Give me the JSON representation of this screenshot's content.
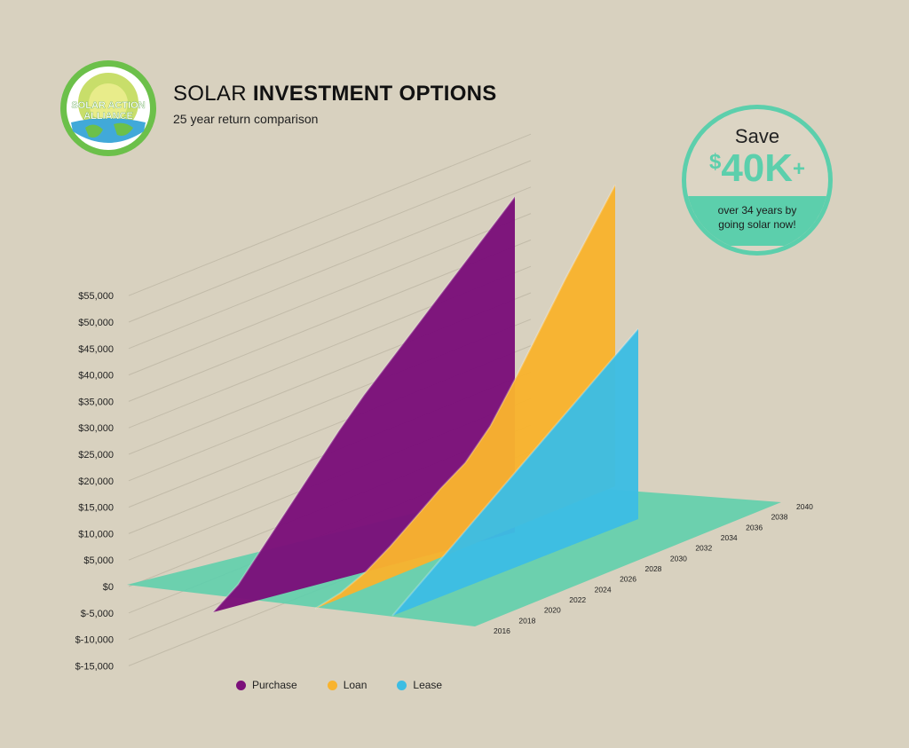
{
  "header": {
    "title_light": "SOLAR ",
    "title_bold": "INVESTMENT OPTIONS",
    "subtitle": "25 year return comparison"
  },
  "logo": {
    "line1": "SOLAR ACTION",
    "line2": "ALLIANCE"
  },
  "badge": {
    "save": "Save",
    "currency": "$",
    "amount": "40K",
    "plus": "+",
    "line1": "over 34 years by",
    "line2": "going solar now!"
  },
  "colors": {
    "purchase": "#7b0f7a",
    "loan": "#f8b32e",
    "lease": "#3dbde3",
    "floor": "#5ccfac",
    "accent": "#5ccfac"
  },
  "chart_data": {
    "type": "area",
    "title": "SOLAR INVESTMENT OPTIONS",
    "subtitle": "25 year return comparison",
    "ylim": [
      -15000,
      55000
    ],
    "y_ticks": [
      55000,
      50000,
      45000,
      40000,
      35000,
      30000,
      25000,
      20000,
      15000,
      10000,
      5000,
      0,
      -5000,
      -10000,
      -15000
    ],
    "y_tick_labels": [
      "$55,000",
      "$50,000",
      "$45,000",
      "$40,000",
      "$35,000",
      "$30,000",
      "$25,000",
      "$20,000",
      "$15,000",
      "$10,000",
      "$5,000",
      "$0",
      "$-5,000",
      "$-10,000",
      "$-15,000"
    ],
    "x_ticks": [
      2016,
      2018,
      2020,
      2022,
      2024,
      2026,
      2028,
      2030,
      2032,
      2034,
      2036,
      2038,
      2040
    ],
    "x_tick_labels": [
      "2016",
      "2018",
      "2020",
      "2022",
      "2024",
      "2026",
      "2028",
      "2030",
      "2032",
      "2034",
      "2036",
      "2038",
      "2040"
    ],
    "x": [
      2016,
      2018,
      2020,
      2022,
      2024,
      2026,
      2028,
      2030,
      2032,
      2034,
      2036,
      2038,
      2040
    ],
    "legend_position": "bottom",
    "series": [
      {
        "name": "Purchase",
        "values": [
          -5000,
          -1000,
          5000,
          11000,
          17000,
          23000,
          28500,
          33500,
          38500,
          43500,
          48500,
          53500,
          58500
        ]
      },
      {
        "name": "Loan",
        "values": [
          -5000,
          -4000,
          -2000,
          1000,
          4500,
          8000,
          11000,
          16000,
          23000,
          30500,
          38000,
          45000,
          52000
        ]
      },
      {
        "name": "Lease",
        "values": [
          -5000,
          -2000,
          1000,
          4000,
          7000,
          10000,
          13000,
          16000,
          19000,
          22000,
          25000,
          28000,
          31000
        ]
      }
    ]
  }
}
